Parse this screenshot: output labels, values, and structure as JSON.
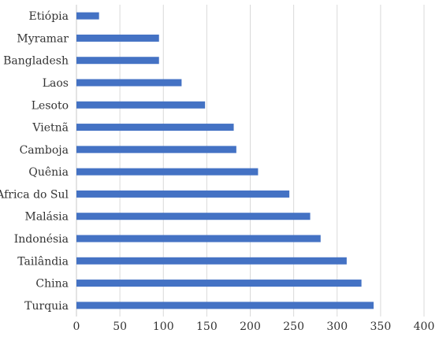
{
  "chart_data": {
    "type": "bar",
    "orientation": "horizontal",
    "categories": [
      "Etiópia",
      "Myramar",
      "Bangladesh",
      "Laos",
      "Lesoto",
      "Vietnã",
      "Camboja",
      "Quênia",
      "Africa do Sul",
      "Malásia",
      "Indonésia",
      "Tailândia",
      "China",
      "Turquia"
    ],
    "values": [
      26,
      95,
      95,
      121,
      148,
      181,
      184,
      209,
      245,
      269,
      281,
      311,
      328,
      342
    ],
    "xlim": [
      0,
      400
    ],
    "xticks": [
      "0",
      "50",
      "100",
      "150",
      "200",
      "250",
      "300",
      "350",
      "400"
    ],
    "grid": true,
    "bar_color": "#4472c4"
  }
}
